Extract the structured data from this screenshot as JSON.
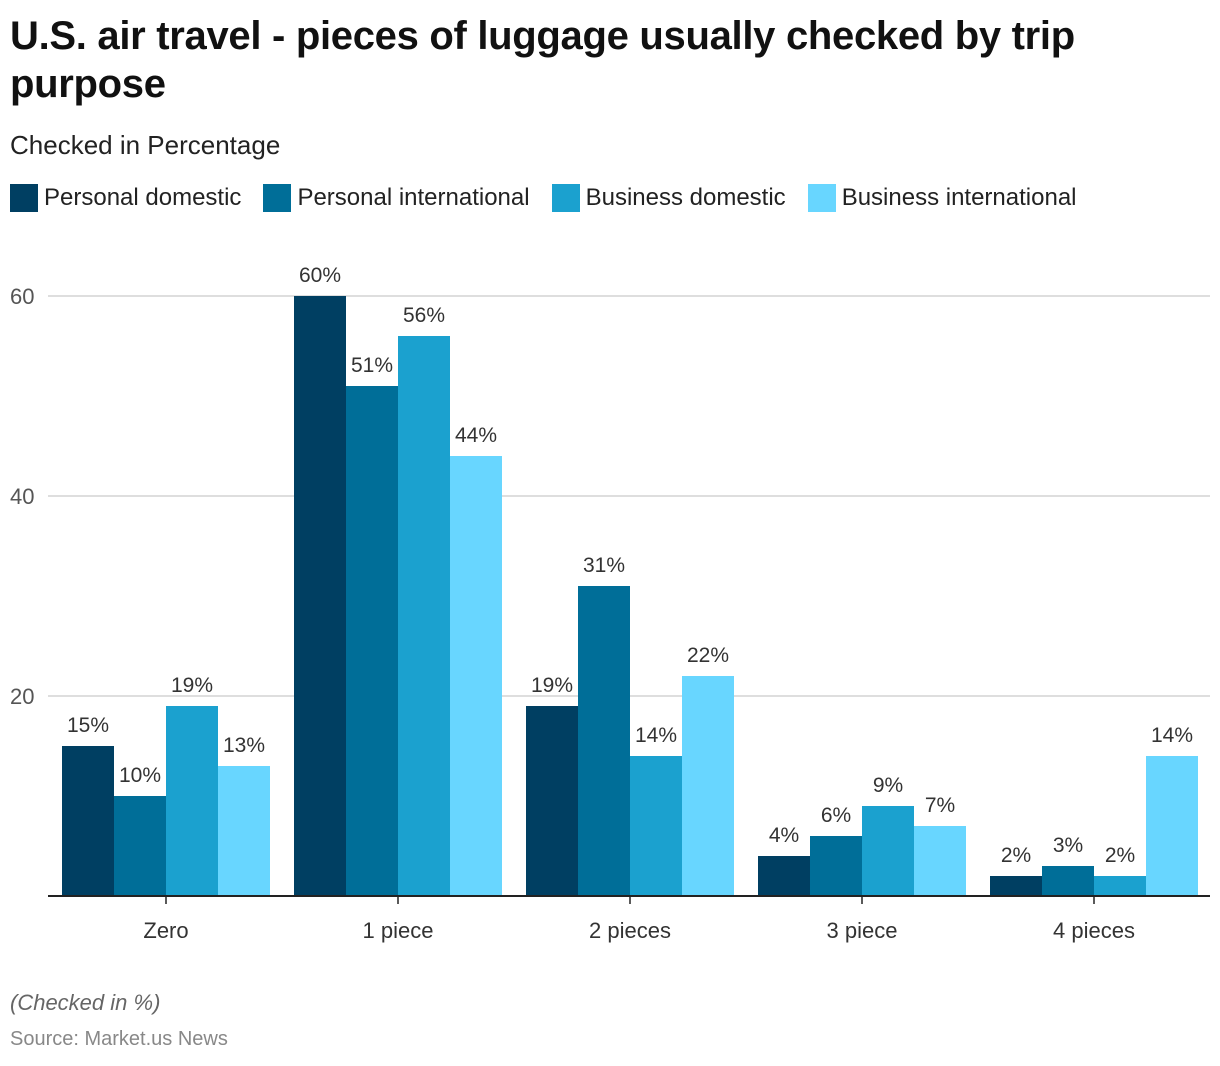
{
  "chart_data": {
    "type": "bar",
    "title": "U.S. air travel - pieces of luggage usually checked by trip purpose",
    "subtitle": "Checked in Percentage",
    "categories": [
      "Zero",
      "1 piece",
      "2 pieces",
      "3 piece",
      "4 pieces"
    ],
    "series": [
      {
        "name": "Personal domestic",
        "color": "#003f62",
        "values": [
          15,
          60,
          19,
          4,
          2
        ]
      },
      {
        "name": "Personal international",
        "color": "#006e98",
        "values": [
          10,
          51,
          31,
          6,
          3
        ]
      },
      {
        "name": "Business domestic",
        "color": "#1ba1cf",
        "values": [
          19,
          56,
          14,
          9,
          2
        ]
      },
      {
        "name": "Business international",
        "color": "#68d6ff",
        "values": [
          13,
          44,
          22,
          7,
          14
        ]
      }
    ],
    "value_suffix": "%",
    "ylim": [
      0,
      60
    ],
    "yticks": [
      20,
      40,
      60
    ],
    "grid": true,
    "legend": "top-left",
    "xlabel": "",
    "ylabel": "",
    "note": "(Checked in %)",
    "source": "Source: Market.us News"
  }
}
